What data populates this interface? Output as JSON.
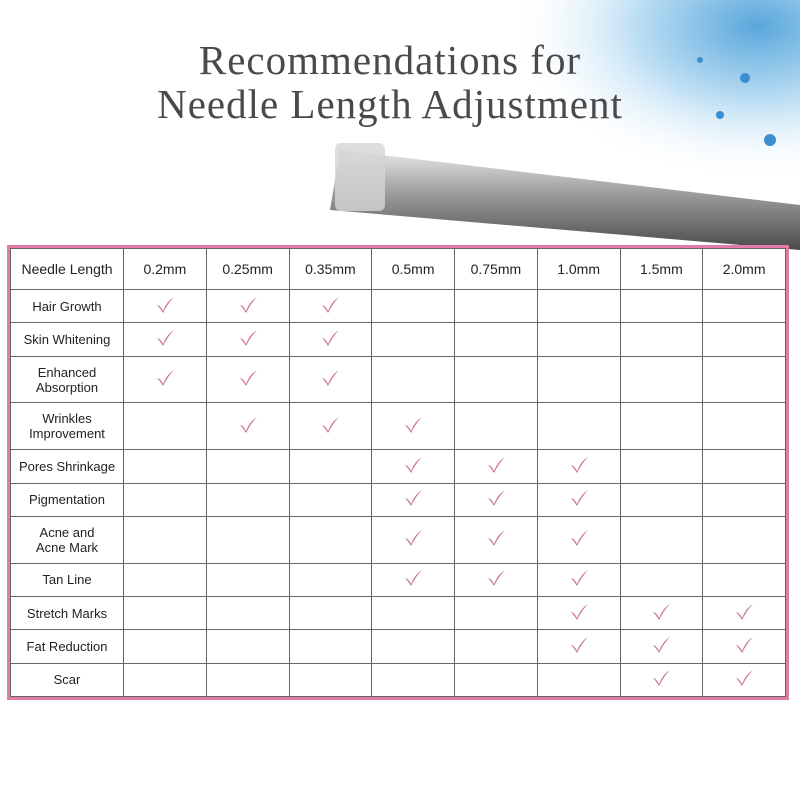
{
  "header": {
    "title_lines": [
      "Recommendations for",
      "Needle Length Adjustment"
    ]
  },
  "table": {
    "corner": "Needle Length",
    "columns": [
      "0.2mm",
      "0.25mm",
      "0.35mm",
      "0.5mm",
      "0.75mm",
      "1.0mm",
      "1.5mm",
      "2.0mm"
    ],
    "rows": [
      {
        "label": [
          "Hair Growth"
        ],
        "checks": [
          true,
          true,
          true,
          false,
          false,
          false,
          false,
          false
        ]
      },
      {
        "label": [
          "Skin Whitening"
        ],
        "checks": [
          true,
          true,
          true,
          false,
          false,
          false,
          false,
          false
        ]
      },
      {
        "label": [
          "Enhanced",
          "Absorption"
        ],
        "checks": [
          true,
          true,
          true,
          false,
          false,
          false,
          false,
          false
        ]
      },
      {
        "label": [
          "Wrinkles",
          "Improvement"
        ],
        "checks": [
          false,
          true,
          true,
          true,
          false,
          false,
          false,
          false
        ]
      },
      {
        "label": [
          "Pores Shrinkage"
        ],
        "checks": [
          false,
          false,
          false,
          true,
          true,
          true,
          false,
          false
        ]
      },
      {
        "label": [
          "Pigmentation"
        ],
        "checks": [
          false,
          false,
          false,
          true,
          true,
          true,
          false,
          false
        ]
      },
      {
        "label": [
          "Acne and",
          "Acne Mark"
        ],
        "checks": [
          false,
          false,
          false,
          true,
          true,
          true,
          false,
          false
        ]
      },
      {
        "label": [
          "Tan Line"
        ],
        "checks": [
          false,
          false,
          false,
          true,
          true,
          true,
          false,
          false
        ]
      },
      {
        "label": [
          "Stretch Marks"
        ],
        "checks": [
          false,
          false,
          false,
          false,
          false,
          true,
          true,
          true
        ]
      },
      {
        "label": [
          "Fat Reduction"
        ],
        "checks": [
          false,
          false,
          false,
          false,
          false,
          true,
          true,
          true
        ]
      },
      {
        "label": [
          "Scar"
        ],
        "checks": [
          false,
          false,
          false,
          false,
          false,
          false,
          true,
          true
        ]
      }
    ]
  }
}
